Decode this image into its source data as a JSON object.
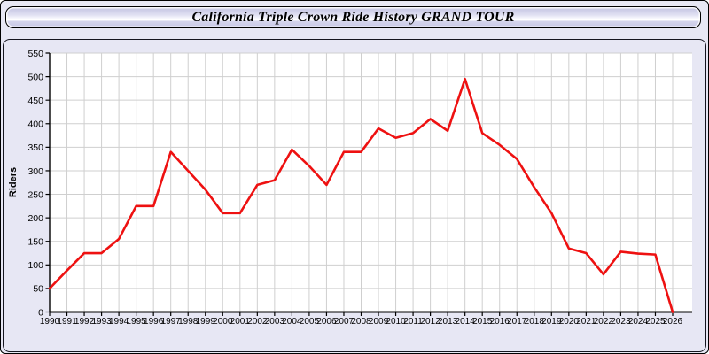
{
  "window": {
    "title": "California Triple Crown Ride History GRAND TOUR"
  },
  "chart_data": {
    "type": "line",
    "title": "California Triple Crown Ride History GRAND TOUR",
    "xlabel": "",
    "ylabel": "Riders",
    "categories": [
      "1990",
      "1991",
      "1992",
      "1993",
      "1994",
      "1995",
      "1996",
      "1997",
      "1998",
      "1999",
      "2000",
      "2001",
      "2002",
      "2003",
      "2004",
      "2005",
      "2006",
      "2007",
      "2008",
      "2009",
      "2010",
      "2011",
      "2012",
      "2013",
      "2014",
      "2015",
      "2016",
      "2017",
      "2018",
      "2019",
      "2020",
      "2021",
      "2022",
      "2023",
      "2024",
      "2025",
      "2026"
    ],
    "series": [
      {
        "name": "Riders",
        "values": [
          50,
          88,
          125,
          125,
          155,
          225,
          225,
          340,
          300,
          260,
          210,
          210,
          270,
          280,
          345,
          310,
          270,
          340,
          340,
          390,
          370,
          380,
          410,
          385,
          495,
          380,
          355,
          325,
          265,
          210,
          135,
          125,
          80,
          128,
          124,
          122,
          0
        ]
      }
    ],
    "ylim": [
      0,
      550
    ],
    "ytick_step": 50,
    "grid": true,
    "legend_position": "none",
    "line_color": "#ee1111",
    "grid_color": "#cfcfcf",
    "axis_color": "#000000",
    "plot_bg": "#ffffff",
    "panel_bg": "#e7e7f4"
  }
}
